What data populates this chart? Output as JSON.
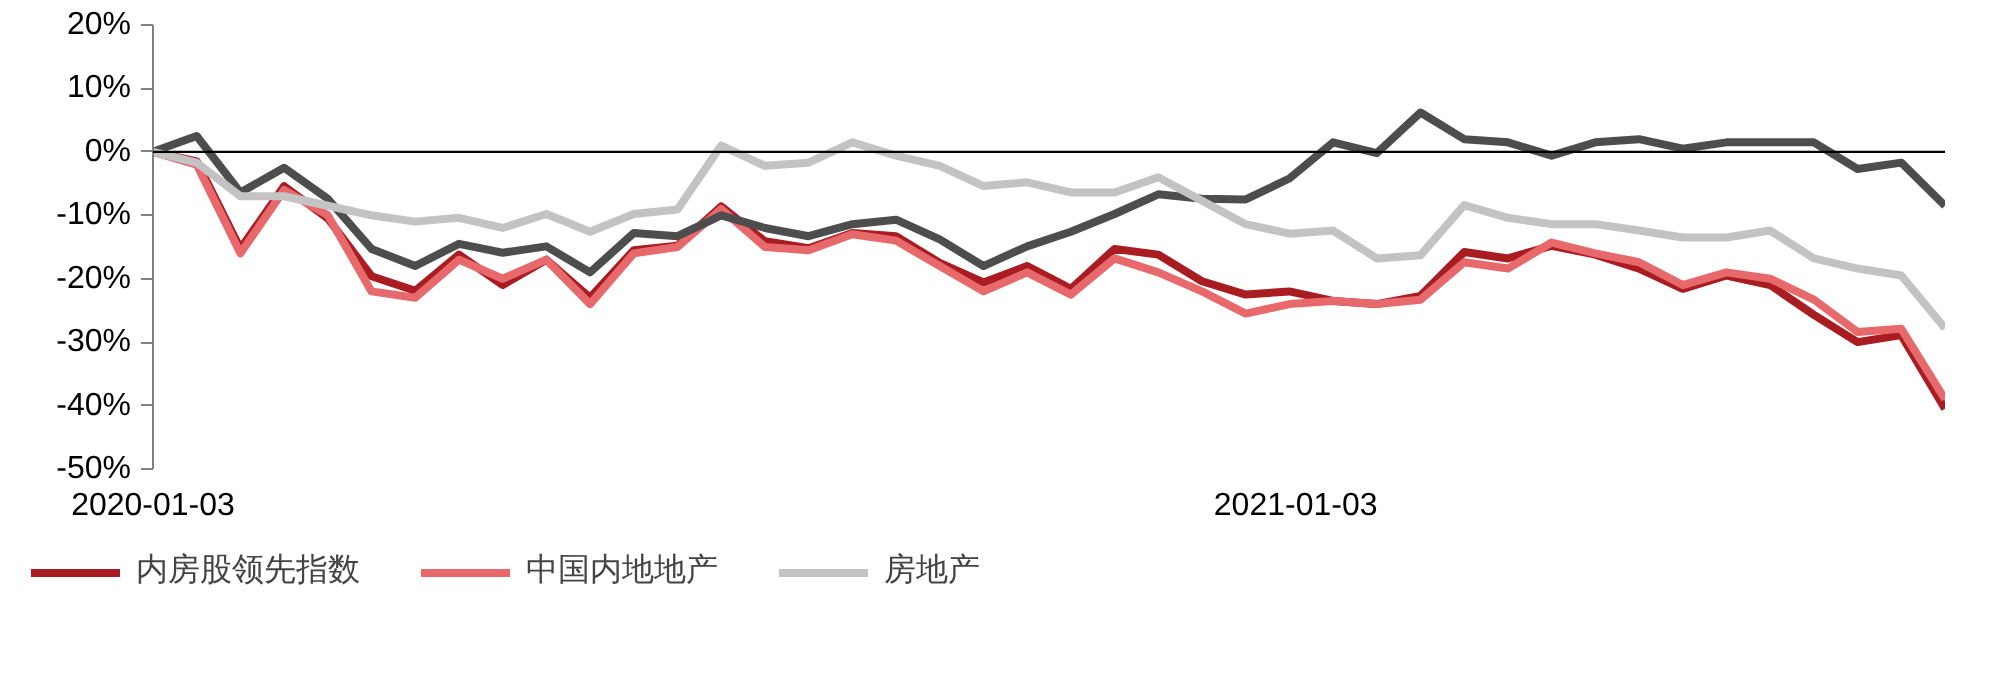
{
  "chart_data": {
    "type": "line",
    "x": [
      "2020-01-03",
      "2020-01-17",
      "2020-01-31",
      "2020-02-14",
      "2020-02-28",
      "2020-03-13",
      "2020-03-27",
      "2020-04-10",
      "2020-04-24",
      "2020-05-08",
      "2020-05-22",
      "2020-06-05",
      "2020-06-19",
      "2020-07-03",
      "2020-07-17",
      "2020-07-31",
      "2020-08-14",
      "2020-08-28",
      "2020-09-11",
      "2020-09-25",
      "2020-10-09",
      "2020-10-23",
      "2020-11-06",
      "2020-11-20",
      "2020-12-04",
      "2020-12-18",
      "2021-01-01",
      "2021-01-15",
      "2021-01-29",
      "2021-02-12",
      "2021-02-26",
      "2021-03-12",
      "2021-03-26",
      "2021-04-09",
      "2021-04-23",
      "2021-05-07",
      "2021-05-21",
      "2021-06-04",
      "2021-06-18",
      "2021-07-02",
      "2021-07-16",
      "2021-07-30"
    ],
    "series": [
      {
        "name": "内房股领先指数",
        "color": "#a81c22",
        "values": [
          0,
          -1.5,
          -15.3,
          -5.4,
          -10.5,
          -19.6,
          -21.9,
          -16.2,
          -21,
          -17,
          -23,
          -15.5,
          -14.8,
          -8.6,
          -14.1,
          -15.2,
          -12.8,
          -13.3,
          -17.5,
          -20.6,
          -18,
          -21.6,
          -15.3,
          -16.2,
          -20.4,
          -22.5,
          -22,
          -23.5,
          -24,
          -22.7,
          -15.8,
          -16.8,
          -14.8,
          -16.2,
          -18.4,
          -21.6,
          -19.5,
          -21,
          -25.7,
          -30,
          -28.9,
          -40.5
        ]
      },
      {
        "name": "中国内地地产",
        "color": "#e8696b",
        "values": [
          0,
          -2,
          -16,
          -6,
          -10,
          -22,
          -23,
          -17,
          -20,
          -17,
          -24,
          -16,
          -15,
          -9,
          -15,
          -15.5,
          -13,
          -14,
          -18,
          -22,
          -19,
          -22.5,
          -16.8,
          -19,
          -22,
          -25.5,
          -24,
          -23.5,
          -24,
          -23.3,
          -17.4,
          -18.4,
          -14.3,
          -16,
          -17.4,
          -21,
          -19,
          -20,
          -23.3,
          -28.4,
          -27.9,
          -39
        ]
      },
      {
        "color": "#4d4d4d",
        "values": [
          0,
          2.5,
          -6.4,
          -2.5,
          -7.4,
          -15.3,
          -18,
          -14.5,
          -15.9,
          -14.9,
          -19,
          -12.8,
          -13.3,
          -10,
          -12,
          -13.3,
          -11.4,
          -10.7,
          -13.8,
          -18,
          -14.9,
          -12.6,
          -9.8,
          -6.7,
          -7.4,
          -7.5,
          -4.2,
          1.5,
          -0.2,
          6.2,
          2,
          1.5,
          -0.6,
          1.5,
          2,
          0.5,
          1.5,
          1.5,
          1.5,
          -2.7,
          -1.7,
          -8.5
        ]
      },
      {
        "name": "房地产",
        "color": "#c3c3c3",
        "values": [
          0,
          -1.7,
          -7,
          -7,
          -8.5,
          -10,
          -11,
          -10.4,
          -12,
          -9.8,
          -12.6,
          -9.8,
          -9.1,
          1,
          -2.2,
          -1.7,
          1.5,
          -0.6,
          -2.2,
          -5.4,
          -4.8,
          -6.4,
          -6.4,
          -4,
          -7.7,
          -11.4,
          -12.9,
          -12.4,
          -16.8,
          -16.3,
          -8.4,
          -10.4,
          -11.4,
          -11.4,
          -12.4,
          -13.5,
          -13.5,
          -12.4,
          -16.8,
          -18.4,
          -19.5,
          -27.8
        ]
      }
    ],
    "xlim": [
      "2020-01-03",
      "2021-07-30"
    ],
    "xticks": [
      "2020-01-03",
      "2021-01-03"
    ],
    "ylim": [
      -50,
      20
    ],
    "yticks": [
      {
        "value": 20,
        "label": "20%"
      },
      {
        "value": 10,
        "label": "10%"
      },
      {
        "value": 0,
        "label": "0%"
      },
      {
        "value": -10,
        "label": "-10%"
      },
      {
        "value": -20,
        "label": "-20%"
      },
      {
        "value": -30,
        "label": "-30%"
      },
      {
        "value": -40,
        "label": "-40%"
      },
      {
        "value": -50,
        "label": "-50%"
      }
    ],
    "ref_lines": [
      {
        "axis": "y",
        "value": 0,
        "color": "#000000"
      }
    ],
    "grid": false,
    "legend": "bottom",
    "line_style": "solid",
    "marker": "none"
  }
}
